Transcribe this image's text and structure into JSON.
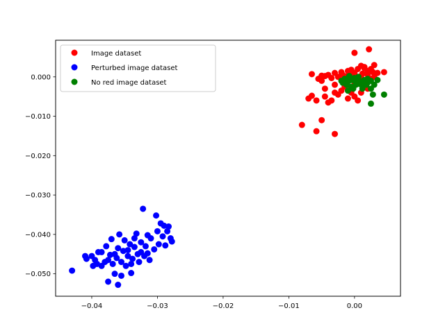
{
  "chart_data": {
    "type": "scatter",
    "title": "",
    "xlabel": "",
    "ylabel": "",
    "xlim": [
      -0.0455,
      0.007
    ],
    "ylim": [
      -0.0557,
      0.0093
    ],
    "grid": false,
    "legend_position": "top-left",
    "xticks": [
      {
        "value": -0.04,
        "label": "−0.04"
      },
      {
        "value": -0.03,
        "label": "−0.03"
      },
      {
        "value": -0.02,
        "label": "−0.02"
      },
      {
        "value": -0.01,
        "label": "−0.01"
      },
      {
        "value": 0.0,
        "label": "0.00"
      }
    ],
    "yticks": [
      {
        "value": 0.0,
        "label": "0.000"
      },
      {
        "value": -0.01,
        "label": "−0.010"
      },
      {
        "value": -0.02,
        "label": "−0.020"
      },
      {
        "value": -0.03,
        "label": "−0.030"
      },
      {
        "value": -0.04,
        "label": "−0.040"
      },
      {
        "value": -0.05,
        "label": "−0.050"
      }
    ],
    "series": [
      {
        "name": "Image dataset",
        "color": "#ff0000",
        "points": [
          [
            0.0022,
            0.007
          ],
          [
            0.0,
            0.0061
          ],
          [
            -0.0045,
            0.0002
          ],
          [
            -0.0065,
            0.0007
          ],
          [
            -0.004,
            0.0005
          ],
          [
            -0.003,
            0.001
          ],
          [
            -0.002,
            0.0012
          ],
          [
            -0.001,
            0.0015
          ],
          [
            -0.0005,
            0.0018
          ],
          [
            0.0005,
            0.002
          ],
          [
            0.001,
            0.0028
          ],
          [
            0.0015,
            0.0022
          ],
          [
            0.002,
            0.0015
          ],
          [
            0.0025,
            0.002
          ],
          [
            0.003,
            0.003
          ],
          [
            0.0045,
            0.0012
          ],
          [
            0.0035,
            0.001
          ],
          [
            0.002,
            0.0005
          ],
          [
            0.001,
            0.0002
          ],
          [
            -0.001,
            0.0003
          ],
          [
            -0.0025,
            0.0
          ],
          [
            -0.0035,
            -0.0003
          ],
          [
            -0.005,
            -0.001
          ],
          [
            -0.0055,
            -0.0005
          ],
          [
            -0.0045,
            -0.003
          ],
          [
            -0.003,
            -0.002
          ],
          [
            -0.0015,
            -0.0025
          ],
          [
            0.0,
            -0.002
          ],
          [
            0.0015,
            -0.0015
          ],
          [
            0.0025,
            -0.0005
          ],
          [
            0.003,
            0.0
          ],
          [
            0.0015,
            0.0025
          ],
          [
            -0.0005,
            0.0008
          ],
          [
            -0.0015,
            -0.0008
          ],
          [
            0.0005,
            -0.001
          ],
          [
            0.002,
            -0.003
          ],
          [
            0.001,
            -0.004
          ],
          [
            -0.007,
            -0.0055
          ],
          [
            -0.0065,
            -0.0048
          ],
          [
            -0.0058,
            -0.006
          ],
          [
            -0.004,
            -0.0065
          ],
          [
            -0.0045,
            -0.005
          ],
          [
            -0.0035,
            -0.006
          ],
          [
            -0.0025,
            -0.0045
          ],
          [
            -0.001,
            -0.0055
          ],
          [
            0.0,
            -0.005
          ],
          [
            0.0005,
            -0.006
          ],
          [
            -0.0005,
            -0.004
          ],
          [
            -0.002,
            -0.0035
          ],
          [
            -0.003,
            -0.004
          ],
          [
            -0.005,
            -0.011
          ],
          [
            -0.008,
            -0.0122
          ],
          [
            -0.0058,
            -0.0138
          ],
          [
            -0.003,
            -0.0145
          ],
          [
            -0.005,
            0.0003
          ],
          [
            0.0,
            0.001
          ],
          [
            0.0008,
            -0.0005
          ],
          [
            -0.0018,
            0.0005
          ],
          [
            0.0028,
            0.0012
          ],
          [
            0.0012,
            0.0008
          ]
        ]
      },
      {
        "name": "Perturbed image dataset",
        "color": "#0000ff",
        "points": [
          [
            -0.043,
            -0.0492
          ],
          [
            -0.041,
            -0.0455
          ],
          [
            -0.0408,
            -0.0462
          ],
          [
            -0.04,
            -0.0455
          ],
          [
            -0.0398,
            -0.048
          ],
          [
            -0.0392,
            -0.0475
          ],
          [
            -0.039,
            -0.0445
          ],
          [
            -0.0385,
            -0.048
          ],
          [
            -0.0385,
            -0.0445
          ],
          [
            -0.038,
            -0.047
          ],
          [
            -0.0378,
            -0.043
          ],
          [
            -0.0375,
            -0.0465
          ],
          [
            -0.0372,
            -0.0452
          ],
          [
            -0.037,
            -0.0412
          ],
          [
            -0.0368,
            -0.0475
          ],
          [
            -0.0365,
            -0.045
          ],
          [
            -0.0362,
            -0.046
          ],
          [
            -0.036,
            -0.0435
          ],
          [
            -0.0358,
            -0.04
          ],
          [
            -0.0355,
            -0.047
          ],
          [
            -0.0352,
            -0.0442
          ],
          [
            -0.035,
            -0.0415
          ],
          [
            -0.0348,
            -0.048
          ],
          [
            -0.0345,
            -0.0455
          ],
          [
            -0.0342,
            -0.0425
          ],
          [
            -0.034,
            -0.0475
          ],
          [
            -0.0338,
            -0.0462
          ],
          [
            -0.0335,
            -0.0432
          ],
          [
            -0.0332,
            -0.0398
          ],
          [
            -0.033,
            -0.045
          ],
          [
            -0.0328,
            -0.047
          ],
          [
            -0.0325,
            -0.042
          ],
          [
            -0.0322,
            -0.0335
          ],
          [
            -0.032,
            -0.0455
          ],
          [
            -0.0318,
            -0.043
          ],
          [
            -0.0315,
            -0.0402
          ],
          [
            -0.0312,
            -0.0465
          ],
          [
            -0.031,
            -0.041
          ],
          [
            -0.0305,
            -0.0438
          ],
          [
            -0.0302,
            -0.0352
          ],
          [
            -0.03,
            -0.0392
          ],
          [
            -0.0298,
            -0.0425
          ],
          [
            -0.0295,
            -0.0372
          ],
          [
            -0.0292,
            -0.0405
          ],
          [
            -0.029,
            -0.0378
          ],
          [
            -0.0288,
            -0.0428
          ],
          [
            -0.0285,
            -0.0392
          ],
          [
            -0.0283,
            -0.038
          ],
          [
            -0.028,
            -0.041
          ],
          [
            -0.0278,
            -0.0418
          ],
          [
            -0.0375,
            -0.052
          ],
          [
            -0.036,
            -0.0528
          ],
          [
            -0.0355,
            -0.0505
          ],
          [
            -0.034,
            -0.0498
          ],
          [
            -0.0365,
            -0.05
          ],
          [
            -0.0345,
            -0.044
          ],
          [
            -0.0335,
            -0.041
          ],
          [
            -0.0325,
            -0.0445
          ],
          [
            -0.0315,
            -0.0448
          ],
          [
            -0.0395,
            -0.0465
          ]
        ]
      },
      {
        "name": "No red image dataset",
        "color": "#008000",
        "points": [
          [
            -0.002,
            -0.001
          ],
          [
            -0.0015,
            -0.0005
          ],
          [
            -0.001,
            -0.0012
          ],
          [
            -0.0005,
            -0.0008
          ],
          [
            0.0,
            -0.001
          ],
          [
            0.0005,
            -0.0005
          ],
          [
            0.001,
            -0.0012
          ],
          [
            0.0015,
            -0.0008
          ],
          [
            0.002,
            -0.0015
          ],
          [
            0.0025,
            -0.001
          ],
          [
            -0.0012,
            -0.002
          ],
          [
            -0.0005,
            -0.0025
          ],
          [
            0.0002,
            -0.002
          ],
          [
            0.0008,
            -0.0018
          ],
          [
            0.0012,
            -0.0022
          ],
          [
            0.0018,
            -0.002
          ],
          [
            -0.0018,
            -0.0015
          ],
          [
            0.0,
            -0.0003
          ],
          [
            0.0006,
            0.0
          ],
          [
            -0.0008,
            0.0002
          ],
          [
            0.003,
            -0.002
          ],
          [
            0.0025,
            -0.003
          ],
          [
            0.0035,
            -0.0008
          ],
          [
            0.0045,
            -0.0045
          ],
          [
            0.0028,
            -0.0045
          ],
          [
            0.0025,
            -0.0068
          ],
          [
            -0.001,
            -0.0035
          ],
          [
            -0.0002,
            -0.003
          ],
          [
            0.0012,
            -0.003
          ],
          [
            0.002,
            -0.0005
          ]
        ]
      }
    ]
  }
}
